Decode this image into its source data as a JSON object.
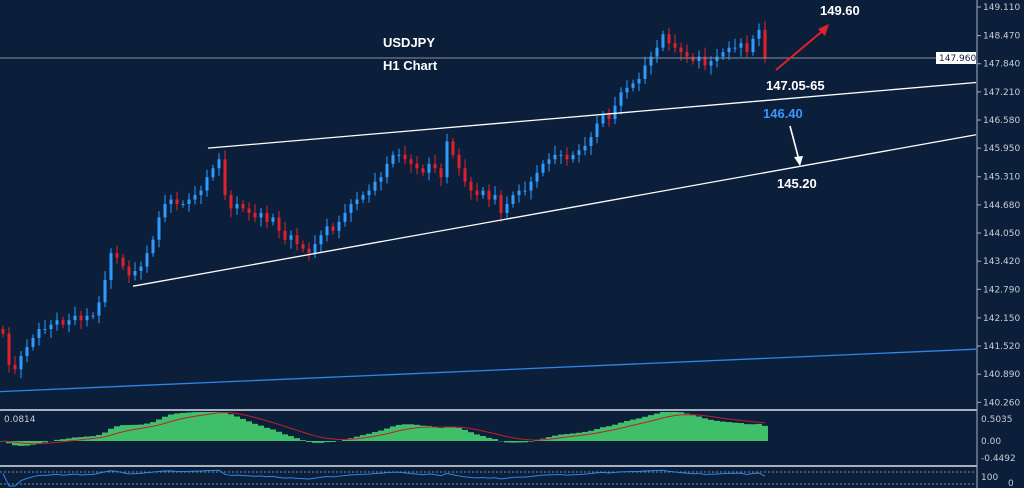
{
  "chart_data": {
    "type": "candlestick",
    "title": "USDJPY",
    "subtitle": "H1 Chart",
    "symbol": "USDJPY",
    "timeframe": "H1",
    "ylim": [
      140.0,
      149.25
    ],
    "y_ticks": [
      "149.110",
      "148.470",
      "147.840",
      "147.210",
      "146.580",
      "145.950",
      "145.310",
      "144.680",
      "144.050",
      "143.420",
      "142.790",
      "142.150",
      "141.520",
      "140.890",
      "140.260"
    ],
    "current_price": "147.960",
    "closes": [
      141.8,
      141.1,
      141.0,
      141.3,
      141.5,
      141.7,
      141.9,
      141.9,
      142.0,
      142.1,
      142.0,
      142.1,
      142.2,
      142.1,
      142.2,
      142.2,
      142.5,
      143.0,
      143.6,
      143.5,
      143.3,
      143.1,
      143.2,
      143.3,
      143.6,
      143.9,
      144.4,
      144.7,
      144.8,
      144.7,
      144.7,
      144.8,
      144.9,
      145.0,
      145.3,
      145.5,
      145.7,
      144.9,
      144.6,
      144.7,
      144.6,
      144.5,
      144.4,
      144.5,
      144.3,
      144.4,
      144.1,
      143.9,
      144.0,
      143.8,
      143.7,
      143.6,
      143.8,
      144.0,
      144.2,
      144.1,
      144.3,
      144.5,
      144.7,
      144.8,
      144.9,
      145.0,
      145.2,
      145.3,
      145.6,
      145.8,
      145.8,
      145.7,
      145.6,
      145.5,
      145.4,
      145.6,
      145.5,
      145.3,
      146.1,
      145.8,
      145.5,
      145.2,
      145.0,
      144.9,
      145.0,
      144.8,
      144.9,
      144.5,
      144.7,
      144.9,
      145.0,
      145.0,
      145.2,
      145.4,
      145.6,
      145.7,
      145.8,
      145.8,
      145.7,
      145.8,
      145.9,
      146.0,
      146.2,
      146.5,
      146.7,
      146.6,
      146.9,
      147.2,
      147.3,
      147.4,
      147.5,
      147.8,
      148.0,
      148.2,
      148.5,
      148.3,
      148.2,
      148.1,
      148.0,
      147.9,
      148.0,
      147.8,
      147.9,
      148.0,
      148.1,
      148.2,
      148.2,
      148.3,
      148.1,
      148.4,
      148.6,
      147.96
    ],
    "annotations": {
      "target_up": "149.60",
      "resistance_zone": "147.05-65",
      "level_blue": "146.40",
      "target_down": "145.20"
    },
    "trendlines": [
      {
        "name": "upper-channel",
        "from": 145.95,
        "to": 147.42
      },
      {
        "name": "lower-channel",
        "from": 142.86,
        "to": 146.25
      },
      {
        "name": "long-term-support",
        "from": 140.5,
        "to": 141.45
      }
    ],
    "oscillator": {
      "label": "0.0814",
      "ticks": [
        "0.5035",
        "0.00",
        "-0.4492"
      ]
    },
    "rsi": {
      "ticks": [
        "100",
        "0"
      ]
    },
    "colors": {
      "background": "#0b1f3b",
      "bull": "#2f9bff",
      "bear": "#e0202a",
      "histogram": "#3fbf6a",
      "signal": "#c0202a",
      "trendline": "#ffffff",
      "support": "#2f86e6",
      "level_blue": "#3a97ff",
      "arrow_up": "#e0202a"
    }
  }
}
